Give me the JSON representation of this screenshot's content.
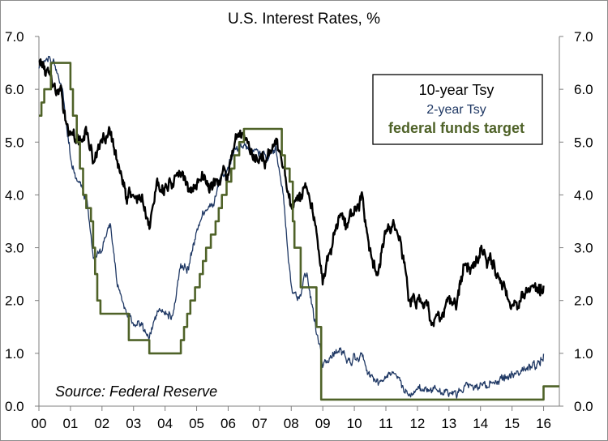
{
  "chart_data": {
    "type": "line",
    "title": "U.S. Interest Rates, %",
    "source": "Source: Federal Reserve",
    "x_tick_labels": [
      "00",
      "01",
      "02",
      "03",
      "04",
      "05",
      "06",
      "07",
      "08",
      "09",
      "10",
      "11",
      "12",
      "13",
      "14",
      "15",
      "16"
    ],
    "y_tick_labels": [
      "0.0",
      "1.0",
      "2.0",
      "3.0",
      "4.0",
      "5.0",
      "6.0",
      "7.0"
    ],
    "ylim": [
      0,
      7
    ],
    "xlim": [
      2000.0,
      2016.5
    ],
    "grid": false,
    "legend_position": "top-right",
    "series": [
      {
        "name": "10-year Tsy",
        "color": "#000000",
        "x": [
          2000.0,
          2000.25,
          2000.5,
          2000.75,
          2001.0,
          2001.25,
          2001.5,
          2001.75,
          2002.0,
          2002.25,
          2002.5,
          2002.75,
          2003.0,
          2003.25,
          2003.5,
          2003.75,
          2004.0,
          2004.25,
          2004.5,
          2004.75,
          2005.0,
          2005.25,
          2005.5,
          2005.75,
          2006.0,
          2006.25,
          2006.5,
          2006.75,
          2007.0,
          2007.25,
          2007.5,
          2007.75,
          2008.0,
          2008.25,
          2008.5,
          2008.75,
          2009.0,
          2009.25,
          2009.5,
          2009.75,
          2010.0,
          2010.25,
          2010.5,
          2010.75,
          2011.0,
          2011.25,
          2011.5,
          2011.75,
          2012.0,
          2012.25,
          2012.5,
          2012.75,
          2013.0,
          2013.25,
          2013.5,
          2013.75,
          2014.0,
          2014.25,
          2014.5,
          2014.75,
          2015.0,
          2015.25,
          2015.5,
          2015.75,
          2016.0
        ],
        "values": [
          6.6,
          6.3,
          6.0,
          5.8,
          5.1,
          5.0,
          5.2,
          4.6,
          5.0,
          5.2,
          4.6,
          4.0,
          4.0,
          3.9,
          3.3,
          4.3,
          4.1,
          4.3,
          4.4,
          4.1,
          4.2,
          4.4,
          4.1,
          4.4,
          4.4,
          5.0,
          5.1,
          4.7,
          4.7,
          4.7,
          5.0,
          4.5,
          3.7,
          3.9,
          4.1,
          3.6,
          2.4,
          3.0,
          3.6,
          3.4,
          3.7,
          3.9,
          3.0,
          2.6,
          3.4,
          3.5,
          3.0,
          2.0,
          2.0,
          2.0,
          1.6,
          1.7,
          1.9,
          1.9,
          2.6,
          2.6,
          2.9,
          2.7,
          2.6,
          2.3,
          1.9,
          2.0,
          2.3,
          2.2,
          2.2
        ]
      },
      {
        "name": "2-year Tsy",
        "color": "#1f3864",
        "x": [
          2000.0,
          2000.25,
          2000.5,
          2000.75,
          2001.0,
          2001.25,
          2001.5,
          2001.75,
          2002.0,
          2002.25,
          2002.5,
          2002.75,
          2003.0,
          2003.25,
          2003.5,
          2003.75,
          2004.0,
          2004.25,
          2004.5,
          2004.75,
          2005.0,
          2005.25,
          2005.5,
          2005.75,
          2006.0,
          2006.25,
          2006.5,
          2006.75,
          2007.0,
          2007.25,
          2007.5,
          2007.75,
          2008.0,
          2008.25,
          2008.5,
          2008.75,
          2009.0,
          2009.25,
          2009.5,
          2009.75,
          2010.0,
          2010.25,
          2010.5,
          2010.75,
          2011.0,
          2011.25,
          2011.5,
          2011.75,
          2012.0,
          2012.25,
          2012.5,
          2012.75,
          2013.0,
          2013.25,
          2013.5,
          2013.75,
          2014.0,
          2014.25,
          2014.5,
          2014.75,
          2015.0,
          2015.25,
          2015.5,
          2015.75,
          2016.0
        ],
        "values": [
          6.4,
          6.6,
          6.5,
          6.0,
          4.7,
          4.2,
          4.0,
          2.8,
          3.0,
          3.5,
          2.3,
          1.8,
          1.6,
          1.5,
          1.3,
          1.8,
          1.8,
          1.7,
          2.7,
          2.6,
          3.3,
          3.7,
          3.8,
          4.3,
          4.5,
          4.9,
          5.0,
          4.8,
          4.8,
          4.7,
          4.9,
          4.0,
          2.2,
          2.0,
          2.6,
          1.6,
          0.8,
          0.9,
          1.1,
          0.9,
          0.9,
          1.0,
          0.6,
          0.4,
          0.6,
          0.7,
          0.4,
          0.2,
          0.3,
          0.3,
          0.3,
          0.3,
          0.25,
          0.25,
          0.35,
          0.35,
          0.4,
          0.45,
          0.5,
          0.55,
          0.6,
          0.6,
          0.7,
          0.75,
          1.0
        ]
      },
      {
        "name": "federal funds target",
        "color": "#4f6228",
        "step": true,
        "x": [
          2000.0,
          2000.08,
          2000.17,
          2000.38,
          2001.0,
          2001.08,
          2001.2,
          2001.3,
          2001.4,
          2001.5,
          2001.65,
          2001.72,
          2001.78,
          2001.85,
          2001.95,
          2002.85,
          2003.5,
          2004.5,
          2004.6,
          2004.7,
          2004.8,
          2004.95,
          2005.1,
          2005.2,
          2005.3,
          2005.45,
          2005.6,
          2005.7,
          2005.8,
          2005.95,
          2006.1,
          2006.2,
          2006.35,
          2006.5,
          2007.7,
          2007.8,
          2007.95,
          2008.05,
          2008.1,
          2008.3,
          2008.8,
          2008.95,
          2016.0,
          2016.5
        ],
        "values": [
          5.5,
          5.75,
          6.0,
          6.5,
          6.0,
          5.5,
          5.0,
          4.5,
          4.0,
          3.75,
          3.5,
          3.0,
          2.5,
          2.0,
          1.75,
          1.25,
          1.0,
          1.25,
          1.5,
          1.75,
          2.0,
          2.25,
          2.5,
          2.75,
          3.0,
          3.25,
          3.5,
          3.75,
          4.0,
          4.25,
          4.5,
          4.75,
          5.0,
          5.25,
          4.75,
          4.5,
          4.25,
          3.5,
          3.0,
          2.25,
          1.5,
          0.125,
          0.375,
          0.375
        ]
      }
    ]
  }
}
